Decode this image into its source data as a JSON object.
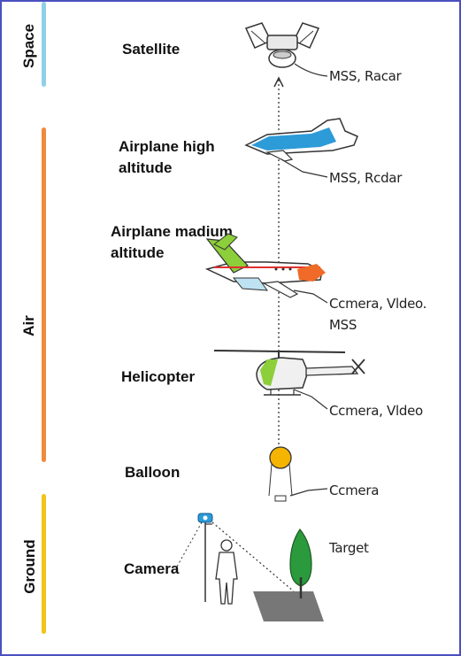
{
  "levels": [
    {
      "label": "Space",
      "color": "#8fd0e8"
    },
    {
      "label": "Air",
      "color": "#f08a3c"
    },
    {
      "label": "Ground",
      "color": "#f2c318"
    }
  ],
  "platforms": [
    {
      "label": "Satellite",
      "sensor": "MSS, Racar"
    },
    {
      "label_line1": "Airplane high",
      "label_line2": "altitude",
      "sensor": "MSS, Rcdar"
    },
    {
      "label_line1": "Airplane madium",
      "label_line2": "altitude",
      "sensor_line1": "Ccmera, Vldeo.",
      "sensor_line2": "MSS"
    },
    {
      "label": "Helicopter",
      "sensor": "Ccmera, Vldeo"
    },
    {
      "label": "Balloon",
      "sensor": "Ccmera"
    },
    {
      "label": "Camera",
      "sensor": "Target"
    }
  ],
  "colors": {
    "frame": "#4a4fbf",
    "high_plane": "#2d9bd8",
    "medium_plane_tail": "#8ccf3a",
    "medium_plane_nose": "#f06a28",
    "balloon": "#f5b400",
    "tree": "#2a9a3c",
    "ground_square": "#777777",
    "camera_icon": "#2a9bd8"
  }
}
